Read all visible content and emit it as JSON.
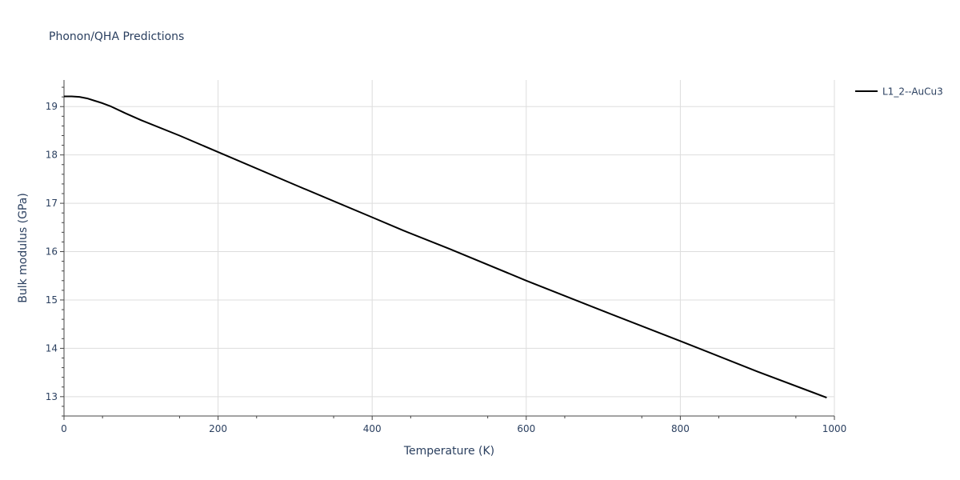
{
  "chart_data": {
    "type": "line",
    "title": "Phonon/QHA Predictions",
    "xlabel": "Temperature (K)",
    "ylabel": "Bulk modulus (GPa)",
    "xlim": [
      0,
      1000
    ],
    "ylim": [
      12.6,
      19.55
    ],
    "x_ticks": [
      0,
      200,
      400,
      600,
      800,
      1000
    ],
    "y_ticks": [
      13,
      14,
      15,
      16,
      17,
      18,
      19
    ],
    "grid": true,
    "legend_position": "top-right",
    "series": [
      {
        "name": "L1_2--AuCu3",
        "color": "#000000",
        "x": [
          0,
          10,
          20,
          30,
          40,
          50,
          60,
          80,
          100,
          150,
          200,
          300,
          400,
          440,
          500,
          600,
          700,
          800,
          900,
          990
        ],
        "y": [
          19.21,
          19.21,
          19.2,
          19.17,
          19.12,
          19.07,
          19.01,
          18.86,
          18.72,
          18.4,
          18.06,
          17.38,
          16.71,
          16.44,
          16.06,
          15.4,
          14.77,
          14.15,
          13.52,
          12.98
        ]
      }
    ]
  }
}
